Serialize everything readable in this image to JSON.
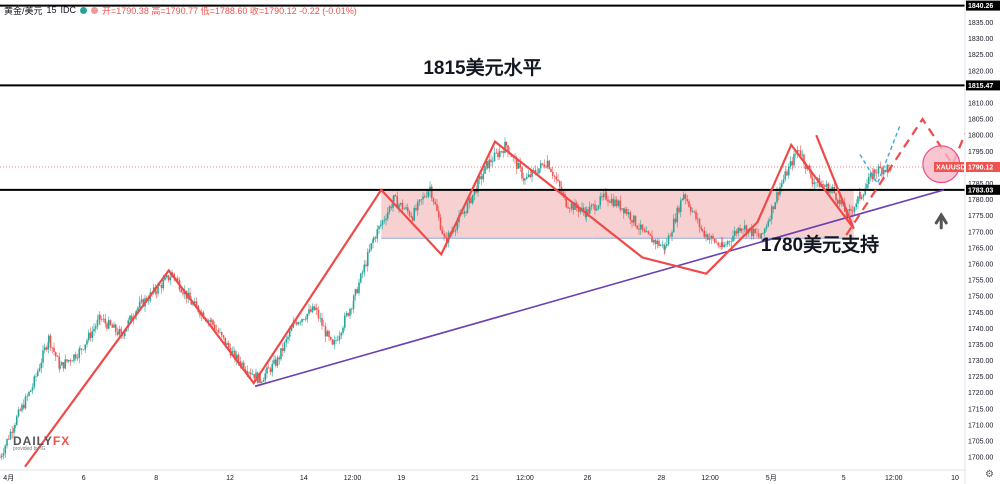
{
  "header": {
    "symbol": "黄金/美元",
    "interval": "15",
    "source": "IDC",
    "ohlc": "开=1790.38  高=1790.77  低=1788.60  收=1790.12  -0.22 (-0.01%)"
  },
  "logo": {
    "main": "DAILY",
    "fx": "FX",
    "sub": "provided by IG"
  },
  "chart_data": {
    "type": "candlestick",
    "y_axis": {
      "ylim": [
        1696,
        1842
      ],
      "ticks": [
        1700,
        1705,
        1710,
        1715,
        1720,
        1725,
        1730,
        1735,
        1740,
        1745,
        1750,
        1755,
        1760,
        1765,
        1770,
        1775,
        1780,
        1785,
        1790,
        1795,
        1800,
        1805,
        1810,
        1815,
        1820,
        1825,
        1830,
        1835,
        1840
      ]
    },
    "x_axis": {
      "range": [
        0,
        76
      ],
      "tick_labels": [
        {
          "x": 0.7,
          "label": "4月"
        },
        {
          "x": 6.7,
          "label": "6"
        },
        {
          "x": 12.5,
          "label": "8"
        },
        {
          "x": 18.4,
          "label": "12"
        },
        {
          "x": 24.3,
          "label": "14"
        },
        {
          "x": 28.2,
          "label": "12:00"
        },
        {
          "x": 32.1,
          "label": "19"
        },
        {
          "x": 38.0,
          "label": "21"
        },
        {
          "x": 42.0,
          "label": "12:00"
        },
        {
          "x": 47.0,
          "label": "26"
        },
        {
          "x": 52.9,
          "label": "28"
        },
        {
          "x": 56.8,
          "label": "12:00"
        },
        {
          "x": 61.7,
          "label": "5月"
        },
        {
          "x": 67.5,
          "label": "5"
        },
        {
          "x": 71.5,
          "label": "12:00"
        },
        {
          "x": 76.4,
          "label": "10"
        }
      ]
    },
    "price_path": [
      [
        0,
        1700
      ],
      [
        1.2,
        1711
      ],
      [
        2.6,
        1722
      ],
      [
        3.9,
        1737
      ],
      [
        4.8,
        1728
      ],
      [
        6.4,
        1733
      ],
      [
        8.0,
        1743
      ],
      [
        9.7,
        1738
      ],
      [
        10.9,
        1746
      ],
      [
        12.5,
        1752
      ],
      [
        13.8,
        1757
      ],
      [
        15.3,
        1748
      ],
      [
        16.9,
        1742
      ],
      [
        18.8,
        1731
      ],
      [
        20.8,
        1724
      ],
      [
        22.2,
        1730
      ],
      [
        23.6,
        1742
      ],
      [
        25.2,
        1746
      ],
      [
        26.6,
        1734
      ],
      [
        28.3,
        1749
      ],
      [
        29.9,
        1768
      ],
      [
        31.5,
        1780
      ],
      [
        33.0,
        1775
      ],
      [
        34.4,
        1784
      ],
      [
        35.6,
        1767
      ],
      [
        37.4,
        1778
      ],
      [
        39.0,
        1791
      ],
      [
        40.5,
        1797
      ],
      [
        42.0,
        1786
      ],
      [
        43.8,
        1792
      ],
      [
        45.3,
        1779
      ],
      [
        46.9,
        1776
      ],
      [
        48.5,
        1781
      ],
      [
        50.0,
        1777
      ],
      [
        51.6,
        1769
      ],
      [
        53.2,
        1765
      ],
      [
        54.7,
        1782
      ],
      [
        56.2,
        1770
      ],
      [
        57.8,
        1765
      ],
      [
        59.3,
        1772
      ],
      [
        60.9,
        1768
      ],
      [
        62.4,
        1784
      ],
      [
        63.9,
        1796
      ],
      [
        65.0,
        1786
      ],
      [
        66.6,
        1783
      ],
      [
        67.8,
        1775
      ],
      [
        68.8,
        1781
      ],
      [
        70.0,
        1789
      ],
      [
        71.3,
        1790.12
      ]
    ],
    "overlays": {
      "horizontal_levels": [
        {
          "value": 1840.26,
          "label": "1840.26"
        },
        {
          "value": 1815.47,
          "label": "1815.47"
        },
        {
          "value": 1783.03,
          "label": "1783.03"
        }
      ],
      "current_price": {
        "value": 1790.12,
        "symbol": "XAUUSD",
        "label": "1790.12"
      },
      "range_box": {
        "x": [
          30.5,
          68.3
        ],
        "y": [
          1768,
          1783
        ]
      },
      "support_trendline": {
        "from": [
          20.4,
          1722
        ],
        "to": [
          75.5,
          1783
        ]
      },
      "zigzag": [
        [
          2.0,
          1697
        ],
        [
          13.5,
          1758
        ],
        [
          20.3,
          1723
        ],
        [
          30.5,
          1783
        ],
        [
          35.3,
          1763
        ],
        [
          39.6,
          1798
        ],
        [
          51.4,
          1762
        ],
        [
          56.5,
          1757
        ],
        [
          60.6,
          1773
        ],
        [
          63.3,
          1797
        ],
        [
          68.3,
          1771
        ],
        [
          65.3,
          1800
        ]
      ],
      "zigzag_note": "zigzag path order as drawn",
      "projection_red": [
        [
          67.7,
          1769
        ],
        [
          73.8,
          1805
        ],
        [
          76.2,
          1791
        ],
        [
          79.2,
          1819
        ]
      ],
      "projection_blue": [
        [
          68.8,
          1794
        ],
        [
          70.2,
          1785
        ],
        [
          72.0,
          1803
        ]
      ],
      "target_circle": {
        "center": [
          75.3,
          1791
        ],
        "radius_price": 6
      }
    },
    "annotations": [
      {
        "text": "1815美元水平",
        "at": [
          38.6,
          1819
        ]
      },
      {
        "text": "1780美元支持",
        "at": [
          65.6,
          1764
        ]
      }
    ]
  }
}
